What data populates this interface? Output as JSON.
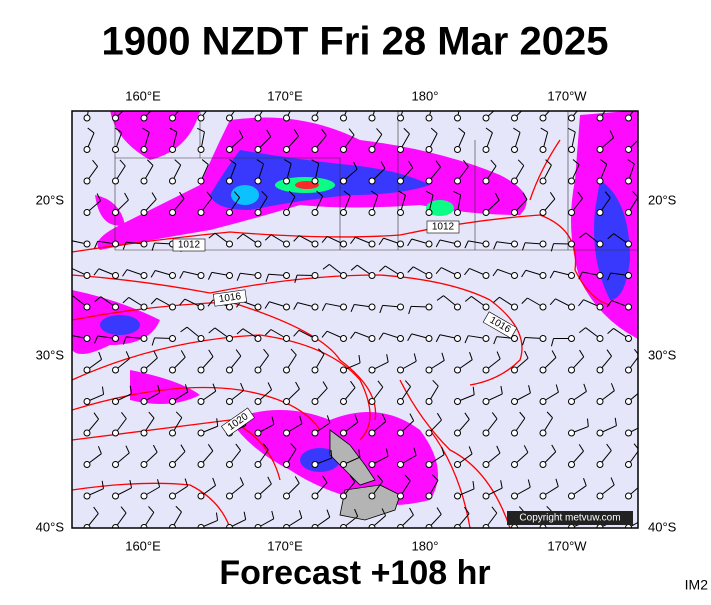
{
  "header": {
    "title": "1900 NZDT Fri 28 Mar 2025"
  },
  "map": {
    "top_lon_labels": [
      "160°E",
      "170°E",
      "180°",
      "170°W"
    ],
    "bottom_lon_labels": [
      "160°E",
      "170°E",
      "180°",
      "170°W"
    ],
    "left_lat_labels": [
      "20°S",
      "30°S",
      "40°S"
    ],
    "right_lat_labels": [
      "20°S",
      "30°S",
      "40°S"
    ],
    "isobar_labels": [
      "1012",
      "1012",
      "1016",
      "1016",
      "1020"
    ],
    "copyright": "Copyright metvuw.com"
  },
  "footer": {
    "subtitle": "Forecast +108 hr",
    "image_id": "IM2"
  }
}
